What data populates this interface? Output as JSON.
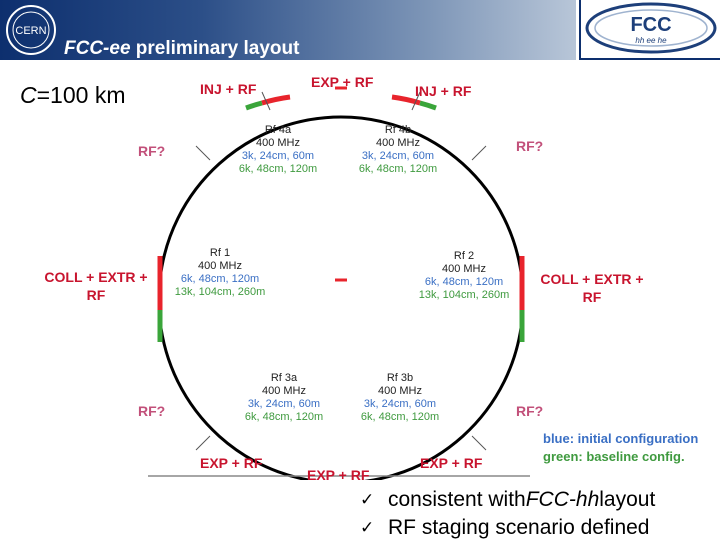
{
  "header": {
    "title": "FCC-ee",
    "title_rest": " preliminary layout"
  },
  "circumference": {
    "symbol": "C",
    "value": "=100 km"
  },
  "ring_labels": {
    "inj_rf_left": "INJ + RF",
    "exp_rf_top": "EXP + RF",
    "inj_rf_right": "INJ + RF",
    "rf_q_ul": "RF?",
    "rf_q_ur": "RF?",
    "coll_left_1": "COLL + EXTR +",
    "coll_left_2": "RF",
    "coll_right_1": "COLL + EXTR +",
    "coll_right_2": "RF",
    "rf_q_ll": "RF?",
    "rf_q_lr": "RF?",
    "exp_rf_bl": "EXP + RF",
    "exp_rf_bottom": "EXP + RF",
    "exp_rf_br": "EXP + RF"
  },
  "rf_sections": {
    "rf4a": {
      "name": "Rf 4a",
      "freq": "400 MHz",
      "blue": "3k, 24cm, 60m",
      "green": "6k, 48cm, 120m"
    },
    "rf4b": {
      "name": "Rf 4b",
      "freq": "400 MHz",
      "blue": "3k, 24cm, 60m",
      "green": "6k, 48cm, 120m"
    },
    "rf1": {
      "name": "Rf 1",
      "freq": "400 MHz",
      "blue": "6k, 48cm, 120m",
      "green": "13k, 104cm, 260m"
    },
    "rf2": {
      "name": "Rf 2",
      "freq": "400 MHz",
      "blue": "6k, 48cm, 120m",
      "green": "13k, 104cm, 260m"
    },
    "rf3a": {
      "name": "Rf 3a",
      "freq": "400 MHz",
      "blue": "3k, 24cm, 60m",
      "green": "6k, 48cm, 120m"
    },
    "rf3b": {
      "name": "Rf 3b",
      "freq": "400 MHz",
      "blue": "3k, 24cm, 60m",
      "green": "6k, 48cm, 120m"
    }
  },
  "legend": {
    "blue": "blue: initial configuration",
    "green": "green: baseline config."
  },
  "bullets": [
    {
      "check": "✓",
      "prefix": "consistent with ",
      "italic": "FCC-hh",
      "suffix": " layout"
    },
    {
      "check": "✓",
      "text": "RF staging scenario defined"
    }
  ],
  "logos": {
    "cern": "CERN",
    "fcc": "FCC",
    "fcc_sub": "hh ee he"
  },
  "colors": {
    "ring": "#000000",
    "red": "#e8242c",
    "green": "#3aa53a",
    "label_red": "#c8142e",
    "label_pink": "#c2507a",
    "blue_text": "#3a6fc4",
    "green_text": "#3f9a3f",
    "header_blue": "#0d2f6e"
  }
}
